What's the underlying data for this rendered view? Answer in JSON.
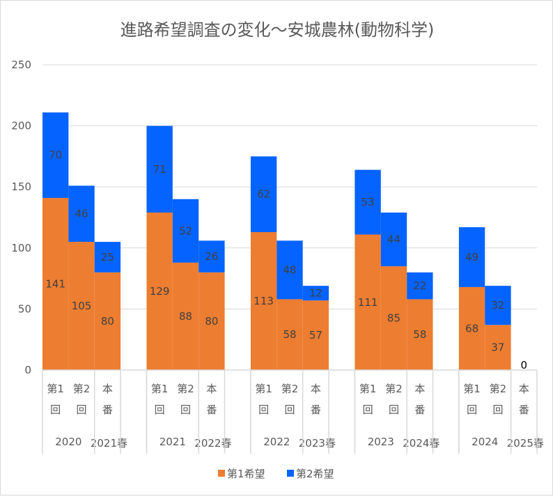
{
  "chart_data": {
    "type": "bar",
    "stacked": true,
    "title": "進路希望調査の変化～安城農林(動物科学)",
    "ylim": [
      0,
      250
    ],
    "yticks": [
      0,
      50,
      100,
      150,
      200,
      250
    ],
    "grid": true,
    "legend_position": "bottom",
    "groups": [
      {
        "year": "2020",
        "final": "2021春"
      },
      {
        "year": "2021",
        "final": "2022春"
      },
      {
        "year": "2022",
        "final": "2023春"
      },
      {
        "year": "2023",
        "final": "2024春"
      },
      {
        "year": "2024",
        "final": "2025春"
      }
    ],
    "category_labels": [
      [
        "第1",
        "回"
      ],
      [
        "第2",
        "回"
      ],
      [
        "本",
        "番"
      ]
    ],
    "series": [
      {
        "name": "第1希望",
        "color": "#ED7D31",
        "values": [
          [
            141,
            105,
            80
          ],
          [
            129,
            88,
            80
          ],
          [
            113,
            58,
            57
          ],
          [
            111,
            85,
            58
          ],
          [
            68,
            37,
            0
          ]
        ]
      },
      {
        "name": "第2希望",
        "color": "#0563FF",
        "values": [
          [
            70,
            46,
            25
          ],
          [
            71,
            52,
            26
          ],
          [
            62,
            48,
            12
          ],
          [
            53,
            44,
            22
          ],
          [
            49,
            32,
            null
          ]
        ]
      }
    ],
    "zero_label": "0"
  }
}
